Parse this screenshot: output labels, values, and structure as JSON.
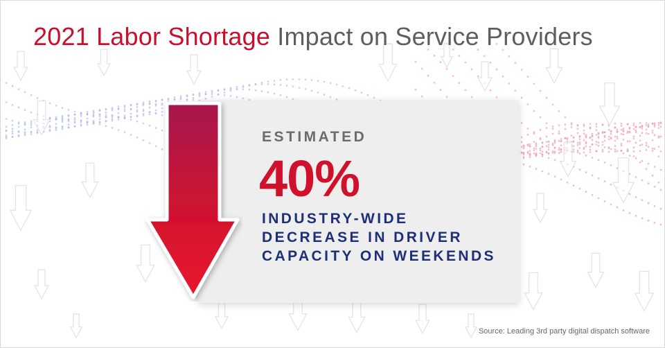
{
  "title": {
    "highlight": "2021 Labor Shortage",
    "rest": "Impact on Service Providers"
  },
  "callout": {
    "eyebrow": "ESTIMATED",
    "value": "40%",
    "lines": [
      "INDUSTRY-WIDE",
      "DECREASE IN DRIVER",
      "CAPACITY ON WEEKENDS"
    ]
  },
  "source": "Source: Leading 3rd party digital dispatch software",
  "icons": {
    "main_arrow": "down-arrow-icon",
    "background": "down-arrow-outline-icon"
  },
  "colors": {
    "accent_red": "#d0112b",
    "navy": "#1e2f7a",
    "gray_text": "#5e5e5e",
    "panel": "#eeeeef"
  }
}
